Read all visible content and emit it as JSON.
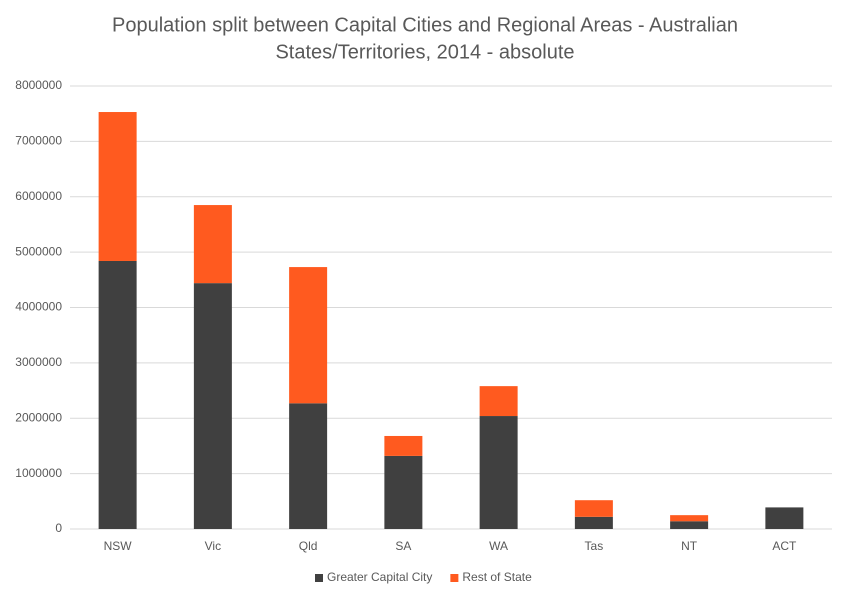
{
  "chart_data": {
    "type": "stacked_bar",
    "title": [
      "Population split between Capital Cities and Regional Areas - Australian",
      "States/Territories, 2014 - absolute"
    ],
    "categories": [
      "NSW",
      "Vic",
      "Qld",
      "SA",
      "WA",
      "Tas",
      "NT",
      "ACT"
    ],
    "series": [
      {
        "name": "Greater Capital City",
        "color": "#404040",
        "values": [
          4840000,
          4440000,
          2270000,
          1320000,
          2040000,
          220000,
          140000,
          390000
        ]
      },
      {
        "name": "Rest of State",
        "color": "#ff5a1f",
        "values": [
          2690000,
          1410000,
          2460000,
          360000,
          540000,
          300000,
          110000,
          0
        ]
      }
    ],
    "ylim": [
      0,
      8000000
    ],
    "yticks": [
      0,
      1000000,
      2000000,
      3000000,
      4000000,
      5000000,
      6000000,
      7000000,
      8000000
    ],
    "grid": true,
    "legend": "bottom"
  }
}
